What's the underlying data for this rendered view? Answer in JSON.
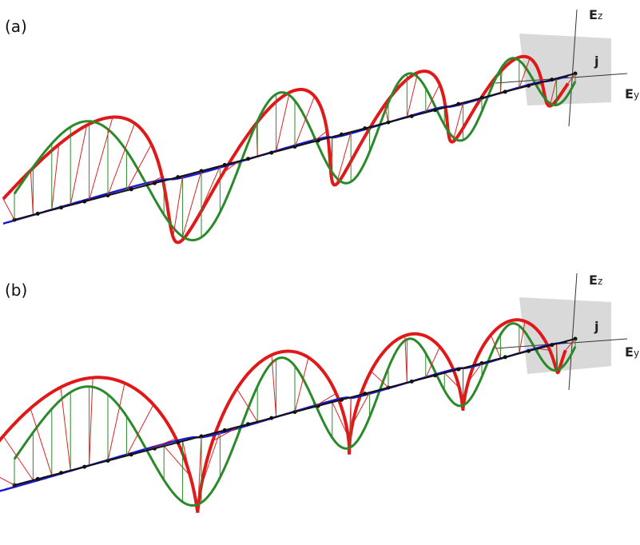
{
  "panels": [
    {
      "label": "(a)",
      "ez": "E",
      "ez_sub": "z",
      "j": "j",
      "ey": "E",
      "ey_sub": "y"
    },
    {
      "label": "(b)",
      "ez": "E",
      "ez_sub": "z",
      "j": "j",
      "ey": "E",
      "ey_sub": "y"
    }
  ]
}
